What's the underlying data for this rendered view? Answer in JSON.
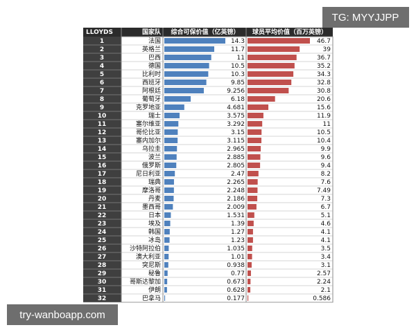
{
  "watermarks": {
    "top": "TG: MYYJJPP",
    "bottom": "try-wanboapp.com"
  },
  "chart_data": {
    "type": "bar",
    "corner_label": "LLOYDS",
    "category_label": "国家队",
    "ranks": [
      1,
      2,
      3,
      4,
      5,
      6,
      7,
      8,
      9,
      10,
      11,
      12,
      13,
      14,
      15,
      16,
      17,
      18,
      19,
      20,
      21,
      22,
      23,
      24,
      25,
      26,
      27,
      28,
      29,
      30,
      31,
      32
    ],
    "categories": [
      "法国",
      "英格兰",
      "巴西",
      "德国",
      "比利时",
      "西班牙",
      "阿根廷",
      "葡萄牙",
      "克罗地亚",
      "瑞士",
      "塞尔维亚",
      "哥伦比亚",
      "塞内加尔",
      "乌拉圭",
      "波兰",
      "俄罗斯",
      "尼日利亚",
      "瑞典",
      "摩洛哥",
      "丹麦",
      "墨西哥",
      "日本",
      "埃及",
      "韩国",
      "冰岛",
      "沙特阿拉伯",
      "澳大利亚",
      "突尼斯",
      "秘鲁",
      "哥斯达黎加",
      "伊朗",
      "巴拿马"
    ],
    "series": [
      {
        "name": "综合可保价值（亿英镑）",
        "color": "#4f81bd",
        "values": [
          14.3,
          11.7,
          11,
          10.5,
          10.3,
          9.85,
          9.256,
          6.18,
          4.681,
          3.575,
          3.292,
          3.15,
          3.115,
          2.965,
          2.885,
          2.805,
          2.47,
          2.265,
          2.248,
          2.186,
          2.009,
          1.531,
          1.39,
          1.27,
          1.23,
          1.035,
          1.01,
          0.938,
          0.77,
          0.673,
          0.628,
          0.177
        ]
      },
      {
        "name": "球员平均价值（百万英镑）",
        "color": "#c0504d",
        "values": [
          46.7,
          39,
          36.7,
          35.2,
          34.3,
          32.8,
          30.8,
          20.6,
          15.6,
          11.9,
          11,
          10.5,
          10.4,
          9.9,
          9.6,
          9.4,
          8.2,
          7.6,
          7.49,
          7.3,
          6.7,
          5.1,
          4.6,
          4.1,
          4.1,
          3.5,
          3.4,
          3.1,
          2.57,
          2.24,
          2.1,
          0.586
        ]
      }
    ]
  }
}
